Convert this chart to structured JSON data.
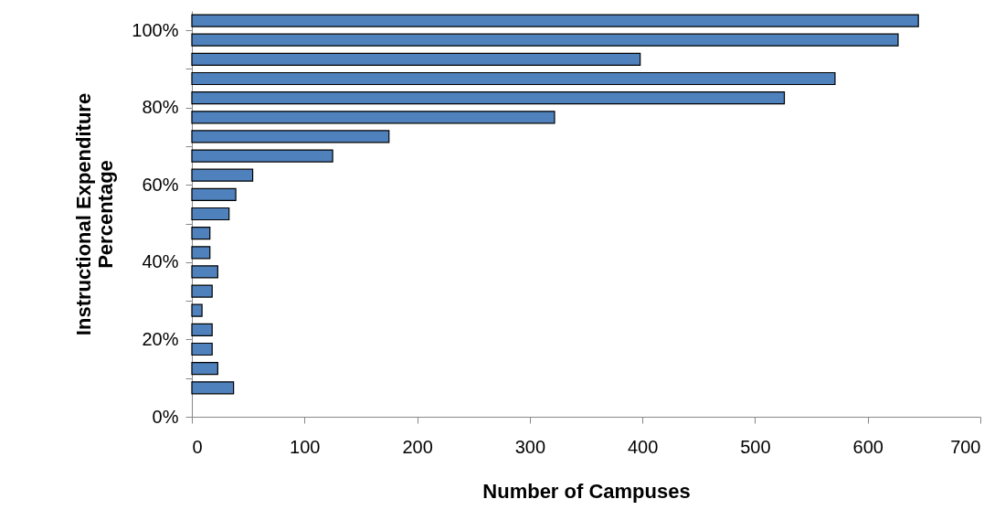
{
  "chart_data": {
    "type": "bar",
    "orientation": "horizontal",
    "xlabel": "Number of Campuses",
    "ylabel": "Instructional Expenditure\nPercentage",
    "color": "#4f81bd",
    "x": [
      102.5,
      97.5,
      92.5,
      87.5,
      82.5,
      77.5,
      72.5,
      67.5,
      62.5,
      57.5,
      52.5,
      47.5,
      42.5,
      37.5,
      32.5,
      27.5,
      22.5,
      17.5,
      12.5,
      7.5
    ],
    "values": [
      645,
      627,
      398,
      571,
      526,
      322,
      175,
      125,
      54,
      39,
      33,
      16,
      16,
      23,
      18,
      9,
      18,
      18,
      23,
      37
    ],
    "xlim": [
      0,
      700
    ],
    "xticks": [
      0,
      100,
      200,
      300,
      400,
      500,
      600,
      700
    ],
    "ylim": [
      0,
      105
    ],
    "yticks": [
      {
        "value": 0,
        "label": "0%"
      },
      {
        "value": 10,
        "label": null
      },
      {
        "value": 20,
        "label": "20%"
      },
      {
        "value": 30,
        "label": null
      },
      {
        "value": 40,
        "label": "40%"
      },
      {
        "value": 50,
        "label": null
      },
      {
        "value": 60,
        "label": "60%"
      },
      {
        "value": 70,
        "label": null
      },
      {
        "value": 80,
        "label": "80%"
      },
      {
        "value": 90,
        "label": null
      },
      {
        "value": 100,
        "label": "100%"
      }
    ],
    "grid": false
  }
}
